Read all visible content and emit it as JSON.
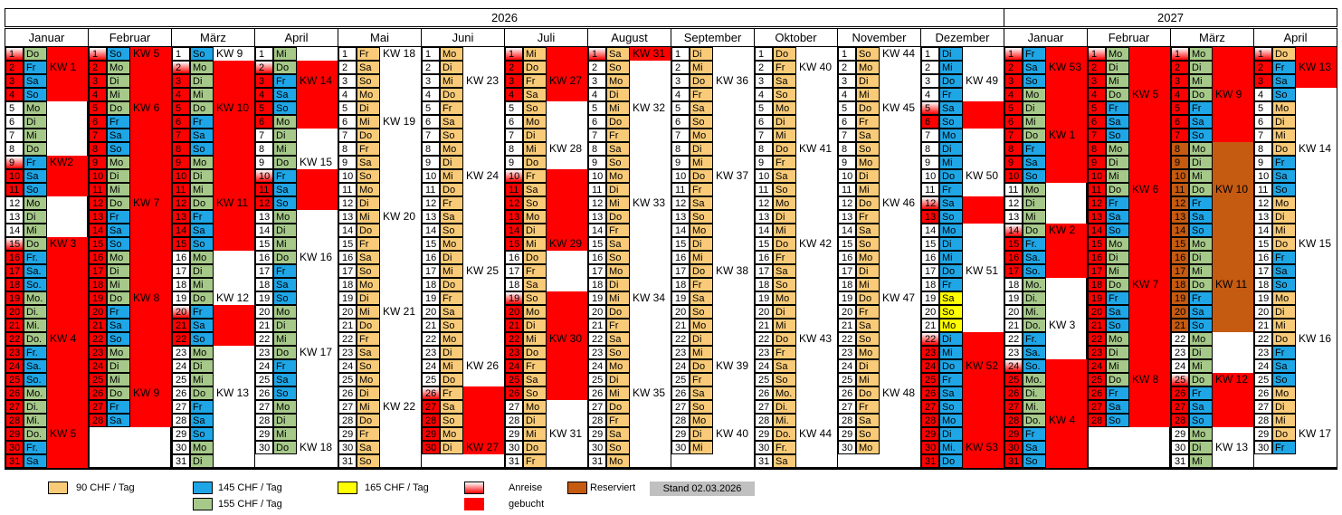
{
  "years": [
    "2026",
    "2027"
  ],
  "months": [
    {
      "name": "Januar",
      "year": 2026,
      "days": [
        "Do",
        "Fr",
        "Sa",
        "So",
        "Mo",
        "Di",
        "Mi",
        "Do",
        "Fr",
        "Sa",
        "So",
        "Mo",
        "Di",
        "Mi",
        "Do",
        "Fr.",
        "Sa.",
        "So.",
        "Mo.",
        "Di.",
        "Mi.",
        "Do.",
        "Fr.",
        "Sa.",
        "So.",
        "Mo.",
        "Di.",
        "Mi.",
        "Do.",
        "Fr.",
        "Sa"
      ],
      "booked": [
        1,
        2,
        3,
        4,
        9,
        10,
        11,
        15,
        16,
        17,
        18,
        19,
        20,
        21,
        22,
        23,
        24,
        25,
        26,
        27,
        28,
        29,
        30,
        31
      ],
      "kw": [
        [
          "KW 1",
          2
        ],
        [
          "KW2",
          9
        ],
        [
          "KW 3",
          15
        ],
        [
          "KW 4",
          22
        ],
        [
          "KW 5",
          29
        ]
      ]
    },
    {
      "name": "Februar",
      "year": 2026,
      "days": [
        "So",
        "Mo",
        "Di",
        "Mi",
        "Do",
        "Fr",
        "Sa",
        "So",
        "Mo",
        "Di",
        "Mi",
        "Do",
        "Fr",
        "Sa",
        "So",
        "Mo",
        "Di",
        "Mi",
        "Do",
        "Fr",
        "Sa",
        "So",
        "Mo",
        "Di",
        "Mi",
        "Do",
        "Fr",
        "Sa"
      ],
      "booked": [
        1,
        2,
        3,
        4,
        5,
        6,
        7,
        8,
        9,
        10,
        11,
        12,
        13,
        14,
        15,
        16,
        17,
        18,
        19,
        20,
        21,
        22,
        23,
        24,
        25,
        26,
        27,
        28
      ],
      "kw": [
        [
          "KW 5",
          1
        ],
        [
          "KW 6",
          5
        ],
        [
          "KW 7",
          12
        ],
        [
          "KW 8",
          19
        ],
        [
          "KW  9",
          26
        ]
      ]
    },
    {
      "name": "März",
      "year": 2026,
      "days": [
        "So",
        "Mo",
        "Di",
        "Mi",
        "Do",
        "Fr",
        "Sa",
        "So",
        "Mo",
        "Di",
        "Mi",
        "Do",
        "Fr",
        "Sa",
        "So",
        "Mo",
        "Di",
        "Mi",
        "Do",
        "Fr",
        "Sa",
        "So",
        "Mo",
        "Di",
        "Mi",
        "Do",
        "Fr",
        "Sa",
        "So",
        "Mo",
        "Di"
      ],
      "booked": [
        2,
        3,
        4,
        5,
        6,
        7,
        8,
        9,
        10,
        11,
        12,
        13,
        14,
        15,
        20,
        21,
        22
      ],
      "kw": [
        [
          "KW 9",
          1
        ],
        [
          "KW 10",
          5
        ],
        [
          "KW 11",
          12
        ],
        [
          "KW 12",
          19
        ],
        [
          "KW 13",
          26
        ]
      ]
    },
    {
      "name": "April",
      "year": 2026,
      "days": [
        "Mi",
        "Do",
        "Fr",
        "Sa",
        "So",
        "Mo",
        "Di",
        "Mi",
        "Do",
        "Fr",
        "Sa",
        "So",
        "Mo",
        "Di",
        "Mi",
        "Do",
        "Fr",
        "Sa",
        "So",
        "Mo",
        "Di",
        "Mi",
        "Do",
        "Fr",
        "Sa",
        "So",
        "Mo",
        "Di",
        "Mi",
        "Do"
      ],
      "booked": [
        2,
        3,
        4,
        5,
        6,
        10,
        11,
        12
      ],
      "kw": [
        [
          "KW 14",
          3
        ],
        [
          "KW 15",
          9
        ],
        [
          "KW 16",
          16
        ],
        [
          "KW 17",
          23
        ],
        [
          "KW 18",
          30
        ]
      ]
    },
    {
      "name": "Mai",
      "year": 2026,
      "days": [
        "Fr",
        "Sa",
        "So",
        "Mo",
        "Di",
        "Mi",
        "Do",
        "Fr",
        "Sa",
        "So",
        "Mo",
        "Di",
        "Mi",
        "Do",
        "Fr",
        "Sa",
        "So",
        "Mo",
        "Di",
        "Mi",
        "Do",
        "Fr",
        "Sa",
        "So",
        "Mo",
        "Di",
        "Mi",
        "Do",
        "Fr",
        "Sa",
        "So"
      ],
      "booked": [],
      "kw": [
        [
          "KW 18",
          1
        ],
        [
          "KW 19",
          6
        ],
        [
          "KW 20",
          13
        ],
        [
          "KW 21",
          20
        ],
        [
          "KW 22",
          27
        ]
      ]
    },
    {
      "name": "Juni",
      "year": 2026,
      "days": [
        "Mo",
        "Di",
        "Mi",
        "Do",
        "Fr",
        "Sa",
        "So",
        "Mo",
        "Di",
        "Mi",
        "Do",
        "Fr",
        "Sa",
        "So",
        "Mo",
        "Di",
        "Mi",
        "Do",
        "Fr",
        "Sa",
        "So",
        "Mo",
        "Di",
        "Mi",
        "Do",
        "Fr",
        "Sa",
        "So",
        "Mo",
        "Di"
      ],
      "booked": [
        26,
        27,
        28,
        29,
        30
      ],
      "kw": [
        [
          "KW 23",
          3
        ],
        [
          "KW 24",
          10
        ],
        [
          "KW 25",
          17
        ],
        [
          "KW 26",
          24
        ],
        [
          "KW 27",
          30
        ]
      ]
    },
    {
      "name": "Juli",
      "year": 2026,
      "days": [
        "Mi",
        "Do",
        "Fr",
        "Sa",
        "So",
        "Mo",
        "Di",
        "Mi",
        "Do",
        "Fr",
        "Sa",
        "So",
        "Mo",
        "Di",
        "Mi",
        "Do",
        "Fr",
        "Sa",
        "So",
        "Mo",
        "Di",
        "Mi",
        "Do",
        "Fr",
        "Sa",
        "So",
        "Mo",
        "Di",
        "Mi",
        "Do",
        "Fr"
      ],
      "booked": [
        1,
        2,
        3,
        4,
        10,
        11,
        12,
        13,
        14,
        15,
        19,
        20,
        21,
        22,
        23,
        24,
        25,
        26
      ],
      "kw": [
        [
          "KW 27",
          3
        ],
        [
          "KW 28",
          8
        ],
        [
          "KW 29",
          15
        ],
        [
          "KW 30",
          22
        ],
        [
          "KW 31",
          29
        ]
      ]
    },
    {
      "name": "August",
      "year": 2026,
      "days": [
        "Sa",
        "So",
        "Mo",
        "Di",
        "Mi",
        "Do",
        "Fr",
        "Sa",
        "So",
        "Mo",
        "Di",
        "Mi",
        "Do",
        "Fr",
        "Sa",
        "So",
        "Mo",
        "Di",
        "Mi",
        "Do",
        "Fr",
        "Sa",
        "So",
        "Mo",
        "Di",
        "Mi",
        "Do",
        "Fr",
        "Sa",
        "So",
        "Mo"
      ],
      "booked": [
        1
      ],
      "kw": [
        [
          "KW 31",
          1
        ],
        [
          "KW 32",
          5
        ],
        [
          "KW 33",
          12
        ],
        [
          "KW 34",
          19
        ],
        [
          "KW 35",
          26
        ]
      ]
    },
    {
      "name": "September",
      "year": 2026,
      "days": [
        "Di",
        "Mi",
        "Do",
        "Fr",
        "Sa",
        "So",
        "Mo",
        "Di",
        "Mi",
        "Do",
        "Fr",
        "Sa",
        "So",
        "Mo",
        "Di",
        "Mi",
        "Do",
        "Fr",
        "Sa",
        "So",
        "Mo",
        "Di",
        "Mi",
        "Do",
        "Fr",
        "Sa",
        "So",
        "Mo",
        "Di",
        "Mi"
      ],
      "booked": [],
      "kw": [
        [
          "KW 36",
          3
        ],
        [
          "KW 37",
          10
        ],
        [
          "KW 38",
          17
        ],
        [
          "KW 39",
          24
        ],
        [
          "KW 40",
          29
        ]
      ]
    },
    {
      "name": "Oktober",
      "year": 2026,
      "days": [
        "Do",
        "Fr",
        "Sa",
        "So",
        "Mo",
        "Di",
        "Mi",
        "Do",
        "Fr",
        "Sa",
        "So",
        "Mo",
        "Di",
        "Mi",
        "Do",
        "Fr",
        "Sa",
        "So",
        "Mo",
        "Di",
        "Mi",
        "Do",
        "Fr",
        "Sa",
        "So",
        "Mo.",
        "Di.",
        "Mi.",
        "Do.",
        "Fr.",
        "Sa"
      ],
      "booked": [],
      "kw": [
        [
          "KW 40",
          2
        ],
        [
          "KW 41",
          8
        ],
        [
          "KW 42",
          15
        ],
        [
          "KW 43",
          22
        ],
        [
          "KW  44",
          29
        ]
      ]
    },
    {
      "name": "November",
      "year": 2026,
      "days": [
        "So",
        "Mo",
        "Di",
        "Mi",
        "Do",
        "Fr",
        "Sa",
        "So",
        "Mo",
        "Di",
        "Mi",
        "Do",
        "Fr",
        "Sa",
        "So",
        "Mo",
        "Di",
        "Mi",
        "Do",
        "Fr",
        "Sa",
        "So",
        "Mo",
        "Di",
        "Mi",
        "Do",
        "Fr",
        "Sa",
        "So",
        "Mo"
      ],
      "booked": [],
      "kw": [
        [
          "KW  44",
          1
        ],
        [
          "KW 45",
          5
        ],
        [
          "KW 46",
          12
        ],
        [
          "KW 47",
          19
        ],
        [
          "KW 48",
          26
        ]
      ]
    },
    {
      "name": "Dezember",
      "year": 2026,
      "days": [
        "Di",
        "Mi",
        "Do",
        "Fr",
        "Sa",
        "So",
        "Mo",
        "Di",
        "Mi",
        "Do",
        "Fr",
        "Sa",
        "So",
        "Mo",
        "Di",
        "Mi",
        "Do",
        "Fr",
        "Sa",
        "So",
        "Mo",
        "Di",
        "Mi",
        "Do",
        "Fr",
        "Sa",
        "So",
        "Mo",
        "Di",
        "Mi.",
        "Do"
      ],
      "booked": [
        5,
        6,
        12,
        13,
        22,
        23,
        24,
        25,
        26,
        27,
        28,
        29,
        30,
        31
      ],
      "kw": [
        [
          "KW 49",
          3
        ],
        [
          "KW 50",
          10
        ],
        [
          "KW 51",
          17
        ],
        [
          "KW 52",
          24
        ],
        [
          "KW 53",
          30
        ]
      ]
    },
    {
      "name": "Januar",
      "year": 2027,
      "days": [
        "Fr",
        "Sa",
        "So",
        "Mo",
        "Di",
        "Mi",
        "Do",
        "Fr",
        "Sa",
        "So",
        "Mo",
        "Di",
        "Mi",
        "Do",
        "Fr.",
        "Sa.",
        "So.",
        "Mo.",
        "Di.",
        "Mi.",
        "Do.",
        "Fr.",
        "Sa.",
        "So.",
        "Mo.",
        "Di.",
        "Mi.",
        "Do.",
        "Fr",
        "Sa",
        "So"
      ],
      "booked": [
        1,
        2,
        3,
        4,
        5,
        6,
        7,
        8,
        9,
        10,
        14,
        15,
        16,
        17,
        24,
        25,
        26,
        27,
        28,
        29,
        30,
        31
      ],
      "kw": [
        [
          "KW 53",
          2
        ],
        [
          "KW 1",
          7
        ],
        [
          "KW 2",
          14
        ],
        [
          "KW 3",
          21
        ],
        [
          "KW 4",
          28
        ]
      ]
    },
    {
      "name": "Februar",
      "year": 2027,
      "days": [
        "Mo",
        "Di",
        "Mi",
        "Do",
        "Fr",
        "Sa",
        "So",
        "Mo",
        "Di",
        "Mi",
        "Do",
        "Fr",
        "Sa",
        "So",
        "Mo",
        "Di",
        "Mi",
        "Do",
        "Fr",
        "Sa",
        "So",
        "Mo",
        "Di",
        "Mi",
        "Do",
        "Fr",
        "Sa",
        "So"
      ],
      "booked": [
        1,
        2,
        3,
        4,
        5,
        6,
        7,
        8,
        9,
        10,
        11,
        12,
        13,
        14,
        15,
        16,
        17,
        18,
        19,
        20,
        21,
        22,
        23,
        24,
        25,
        26,
        27,
        28
      ],
      "kw": [
        [
          "KW 5",
          4
        ],
        [
          "KW 6",
          11
        ],
        [
          "KW 7",
          18
        ],
        [
          "KW 8",
          25
        ]
      ]
    },
    {
      "name": "März",
      "year": 2027,
      "days": [
        "Mo",
        "Di",
        "Mi",
        "Do",
        "Fr",
        "Sa",
        "So",
        "Mo",
        "Di",
        "Mi",
        "Do",
        "Fr",
        "Sa",
        "So",
        "Mo",
        "Di",
        "Mi",
        "Do",
        "Fr",
        "Sa",
        "So",
        "Mo",
        "Di",
        "Mi",
        "Do",
        "Fr",
        "Sa",
        "So",
        "Mo",
        "Di",
        "Mi"
      ],
      "booked": [
        1,
        2,
        3,
        4,
        5,
        6,
        7,
        25,
        26,
        27,
        28
      ],
      "reserved": [
        8,
        9,
        10,
        11,
        12,
        13,
        14,
        15,
        16,
        17,
        18,
        19,
        20,
        21
      ],
      "kw": [
        [
          "KW 9",
          4
        ],
        [
          "KW 10",
          11
        ],
        [
          "KW 11",
          18
        ],
        [
          "KW 12",
          25
        ],
        [
          "KW 13",
          30
        ]
      ]
    },
    {
      "name": "April",
      "year": 2027,
      "days": [
        "Do",
        "Fr",
        "Sa",
        "So",
        "Mo",
        "Di",
        "Mi",
        "Do",
        "Fr",
        "Sa",
        "So",
        "Mo",
        "Di",
        "Mi",
        "Do",
        "Fr",
        "Sa",
        "So",
        "Mo",
        "Di",
        "Mi",
        "Do",
        "Fr",
        "Sa",
        "So",
        "Mo",
        "Di",
        "Mi",
        "Do",
        "Fr"
      ],
      "booked": [
        1,
        2,
        3
      ],
      "kw": [
        [
          "KW 13",
          2
        ],
        [
          "KW 14",
          8
        ],
        [
          "KW 15",
          15
        ],
        [
          "KW 16",
          22
        ],
        [
          "KW 17",
          29
        ]
      ]
    }
  ],
  "legend": {
    "price_90": "90  CHF / Tag",
    "price_145": "145 CHF / Tag",
    "price_155": "155  CHF / Tag",
    "price_165": "165  CHF / Tag",
    "arrival": "Anreise",
    "booked": "gebucht",
    "reserved": "Reserviert",
    "stand": "Stand 02.03.2026"
  },
  "colors": {
    "price_90": "#f9cb78",
    "price_145": "#1fa6e6",
    "price_155": "#a6c98a",
    "price_165": "#ffff00",
    "booked": "#ff0000",
    "reserved": "#c55a11",
    "stand_bg": "#c0c0c0"
  }
}
